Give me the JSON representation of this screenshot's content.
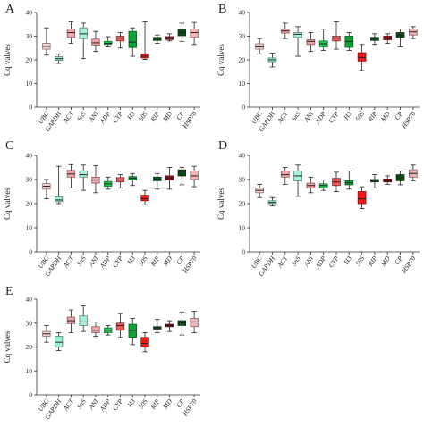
{
  "figure": {
    "categories": [
      "UBC",
      "GAPDH",
      "ACT",
      "SnS",
      "ANI",
      "ADP",
      "CYP",
      "H3",
      "50S",
      "RIP",
      "MD",
      "CP",
      "HSP70"
    ],
    "category_colors": [
      "#f3cfcf",
      "#9ff0cf",
      "#f0a4a8",
      "#a8f0d8",
      "#f0a4a8",
      "#26c856",
      "#f05a5a",
      "#14a038",
      "#e81c1c",
      "#155c22",
      "#9b0f14",
      "#0e4a18",
      "#f1b5b7"
    ],
    "ylabel": "Cq valves"
  },
  "chart_data": [
    {
      "type": "box",
      "panel": "A",
      "ylabel": "Cq valves",
      "ylim": [
        0,
        40
      ],
      "yticks": [
        "0",
        "10",
        "20",
        "30",
        "40"
      ],
      "categories": [
        "UBC",
        "GAPDH",
        "ACT",
        "SnS",
        "ANI",
        "ADP",
        "CYP",
        "H3",
        "50S",
        "RIP",
        "MD",
        "CP",
        "HSP70"
      ],
      "boxes": [
        {
          "min": 22,
          "q1": 24.5,
          "median": 25.7,
          "q3": 27,
          "max": 33.5
        },
        {
          "min": 18.5,
          "q1": 19.8,
          "median": 20.5,
          "q3": 21.3,
          "max": 22.5
        },
        {
          "min": 27,
          "q1": 29.5,
          "median": 31.5,
          "q3": 33,
          "max": 36
        },
        {
          "min": 20.5,
          "q1": 29,
          "median": 31,
          "q3": 33.5,
          "max": 35.5
        },
        {
          "min": 23.5,
          "q1": 26.2,
          "median": 27.2,
          "q3": 28.8,
          "max": 32
        },
        {
          "min": 25.5,
          "q1": 26.5,
          "median": 27,
          "q3": 27.8,
          "max": 29.8
        },
        {
          "min": 25,
          "q1": 28,
          "median": 29.2,
          "q3": 30,
          "max": 31.5
        },
        {
          "min": 21.5,
          "q1": 25.2,
          "median": 27.5,
          "q3": 32,
          "max": 33.5
        },
        {
          "min": 20.2,
          "q1": 20.8,
          "median": 21.5,
          "q3": 22.5,
          "max": 36
        },
        {
          "min": 27,
          "q1": 28.2,
          "median": 28.8,
          "q3": 29.5,
          "max": 30.5
        },
        {
          "min": 28,
          "q1": 28.6,
          "median": 29.2,
          "q3": 29.8,
          "max": 31
        },
        {
          "min": 27.8,
          "q1": 30.2,
          "median": 31.5,
          "q3": 33,
          "max": 35.5
        },
        {
          "min": 26.5,
          "q1": 29.5,
          "median": 31.5,
          "q3": 33,
          "max": 35.8
        }
      ]
    },
    {
      "type": "box",
      "panel": "B",
      "ylabel": "Cq valves",
      "ylim": [
        0,
        40
      ],
      "yticks": [
        "0",
        "10",
        "20",
        "30",
        "40"
      ],
      "categories": [
        "UBC",
        "GAPDH",
        "ACT",
        "SnS",
        "ANI",
        "ADP",
        "CYP",
        "H3",
        "50S",
        "RIP",
        "MD",
        "CP",
        "HSP70"
      ],
      "boxes": [
        {
          "min": 22.5,
          "q1": 24.5,
          "median": 25.5,
          "q3": 26.8,
          "max": 29
        },
        {
          "min": 17,
          "q1": 19.2,
          "median": 20,
          "q3": 20.8,
          "max": 22.8
        },
        {
          "min": 29,
          "q1": 31.3,
          "median": 32.2,
          "q3": 33,
          "max": 35.5
        },
        {
          "min": 21.5,
          "q1": 29.5,
          "median": 30.8,
          "q3": 31.5,
          "max": 34
        },
        {
          "min": 23.5,
          "q1": 26.5,
          "median": 27.8,
          "q3": 28.5,
          "max": 31.5
        },
        {
          "min": 24,
          "q1": 25.5,
          "median": 26.8,
          "q3": 28,
          "max": 33
        },
        {
          "min": 24.5,
          "q1": 28,
          "median": 29.2,
          "q3": 30,
          "max": 36
        },
        {
          "min": 24,
          "q1": 25.3,
          "median": 27.8,
          "q3": 30,
          "max": 31.5
        },
        {
          "min": 15.5,
          "q1": 19.5,
          "median": 21,
          "q3": 23,
          "max": 26.5
        },
        {
          "min": 26.5,
          "q1": 28.2,
          "median": 28.8,
          "q3": 29.5,
          "max": 31
        },
        {
          "min": 27,
          "q1": 28.5,
          "median": 29.2,
          "q3": 30,
          "max": 31
        },
        {
          "min": 25.5,
          "q1": 29.5,
          "median": 30.5,
          "q3": 31.5,
          "max": 33
        },
        {
          "min": 29,
          "q1": 30.5,
          "median": 31.8,
          "q3": 33,
          "max": 34
        }
      ]
    },
    {
      "type": "box",
      "panel": "C",
      "ylabel": "Cq valves",
      "ylim": [
        0,
        40
      ],
      "yticks": [
        "0",
        "10",
        "20",
        "30",
        "40"
      ],
      "categories": [
        "UBC",
        "GAPDH",
        "ACT",
        "SnS",
        "ANI",
        "ADP",
        "CYP",
        "H3",
        "50S",
        "RIP",
        "MD",
        "CP",
        "HSP70"
      ],
      "boxes": [
        {
          "min": 22,
          "q1": 26,
          "median": 27.2,
          "q3": 28.3,
          "max": 30
        },
        {
          "min": 20,
          "q1": 20.8,
          "median": 21.5,
          "q3": 22.8,
          "max": 35.5
        },
        {
          "min": 26.5,
          "q1": 31,
          "median": 32.3,
          "q3": 33.8,
          "max": 36.2
        },
        {
          "min": 25.5,
          "q1": 31,
          "median": 32,
          "q3": 33.5,
          "max": 36
        },
        {
          "min": 24.5,
          "q1": 28.5,
          "median": 29.8,
          "q3": 31,
          "max": 35.8
        },
        {
          "min": 26,
          "q1": 27.2,
          "median": 28.2,
          "q3": 29.2,
          "max": 31
        },
        {
          "min": 26.5,
          "q1": 29,
          "median": 29.8,
          "q3": 30.8,
          "max": 32
        },
        {
          "min": 27.5,
          "q1": 29.8,
          "median": 30.5,
          "q3": 31.2,
          "max": 32.5
        },
        {
          "min": 19.5,
          "q1": 21.2,
          "median": 22,
          "q3": 23.5,
          "max": 25.5
        },
        {
          "min": 26,
          "q1": 29.5,
          "median": 30.2,
          "q3": 31,
          "max": 32.5
        },
        {
          "min": 26,
          "q1": 29.8,
          "median": 30.5,
          "q3": 31.5,
          "max": 35
        },
        {
          "min": 27.8,
          "q1": 31.5,
          "median": 33,
          "q3": 34,
          "max": 35
        },
        {
          "min": 27,
          "q1": 30,
          "median": 31.5,
          "q3": 33.5,
          "max": 35.5
        }
      ]
    },
    {
      "type": "box",
      "panel": "D",
      "ylabel": "Cq valves",
      "ylim": [
        0,
        40
      ],
      "yticks": [
        "0",
        "10",
        "20",
        "30",
        "40"
      ],
      "categories": [
        "UBC",
        "GAPDH",
        "ACT",
        "SnS",
        "ANI",
        "ADP",
        "CYP",
        "H3",
        "50S",
        "RIP",
        "MD",
        "CP",
        "HSP70"
      ],
      "boxes": [
        {
          "min": 22.5,
          "q1": 24.5,
          "median": 25.5,
          "q3": 26.5,
          "max": 28
        },
        {
          "min": 19,
          "q1": 20,
          "median": 20.5,
          "q3": 21.2,
          "max": 22.5
        },
        {
          "min": 28,
          "q1": 31,
          "median": 32,
          "q3": 33.5,
          "max": 35
        },
        {
          "min": 23,
          "q1": 29.5,
          "median": 31.5,
          "q3": 33.5,
          "max": 36
        },
        {
          "min": 24.5,
          "q1": 26.5,
          "median": 27.5,
          "q3": 28.5,
          "max": 31
        },
        {
          "min": 25.5,
          "q1": 26.5,
          "median": 27.5,
          "q3": 28.2,
          "max": 29.8
        },
        {
          "min": 25,
          "q1": 27.5,
          "median": 29,
          "q3": 30.5,
          "max": 33
        },
        {
          "min": 26,
          "q1": 27.8,
          "median": 28.6,
          "q3": 29.5,
          "max": 33.5
        },
        {
          "min": 18,
          "q1": 20,
          "median": 22,
          "q3": 25,
          "max": 27
        },
        {
          "min": 26.5,
          "q1": 29,
          "median": 29.5,
          "q3": 30,
          "max": 32
        },
        {
          "min": 28,
          "q1": 29,
          "median": 29.5,
          "q3": 30.2,
          "max": 31.5
        },
        {
          "min": 27.8,
          "q1": 29.5,
          "median": 30.8,
          "q3": 32,
          "max": 33.5
        },
        {
          "min": 29.5,
          "q1": 31,
          "median": 32.5,
          "q3": 34,
          "max": 36
        }
      ]
    },
    {
      "type": "box",
      "panel": "E",
      "ylabel": "Cq valves",
      "ylim": [
        0,
        40
      ],
      "yticks": [
        "0",
        "10",
        "20",
        "30",
        "40"
      ],
      "categories": [
        "UBC",
        "GAPDH",
        "ACT",
        "SnS",
        "ANI",
        "ADP",
        "CYP",
        "H3",
        "50S",
        "RIP",
        "MD",
        "CP",
        "HSP70"
      ],
      "boxes": [
        {
          "min": 22,
          "q1": 24.5,
          "median": 25.5,
          "q3": 26.5,
          "max": 29
        },
        {
          "min": 18.5,
          "q1": 20,
          "median": 22,
          "q3": 24.5,
          "max": 26
        },
        {
          "min": 26,
          "q1": 29.8,
          "median": 31,
          "q3": 32.5,
          "max": 35.5
        },
        {
          "min": 26.5,
          "q1": 29,
          "median": 30.5,
          "q3": 33,
          "max": 37.2
        },
        {
          "min": 24.5,
          "q1": 26,
          "median": 27,
          "q3": 28.5,
          "max": 30.5
        },
        {
          "min": 25,
          "q1": 26,
          "median": 27,
          "q3": 28,
          "max": 29
        },
        {
          "min": 24,
          "q1": 27,
          "median": 29,
          "q3": 30,
          "max": 34
        },
        {
          "min": 21,
          "q1": 24,
          "median": 27,
          "q3": 29.5,
          "max": 32
        },
        {
          "min": 18,
          "q1": 20,
          "median": 21.5,
          "q3": 24,
          "max": 26
        },
        {
          "min": 26,
          "q1": 27.5,
          "median": 28,
          "q3": 28.5,
          "max": 31.5
        },
        {
          "min": 26.5,
          "q1": 28.5,
          "median": 29,
          "q3": 29.5,
          "max": 31
        },
        {
          "min": 25,
          "q1": 29,
          "median": 30,
          "q3": 31,
          "max": 34.5
        },
        {
          "min": 26,
          "q1": 28.5,
          "median": 30.5,
          "q3": 32,
          "max": 35
        }
      ]
    }
  ]
}
